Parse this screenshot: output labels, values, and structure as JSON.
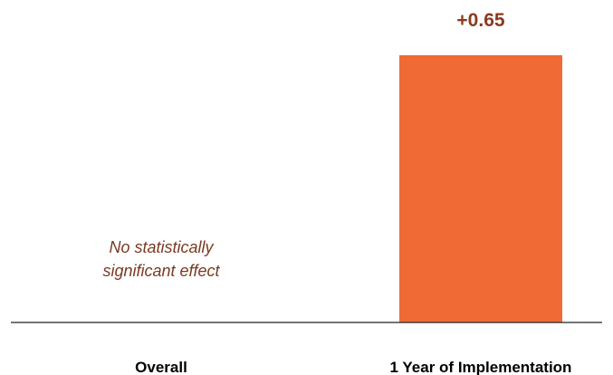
{
  "chart_data": {
    "type": "bar",
    "categories": [
      "Overall",
      "1 Year of Implementation"
    ],
    "values": [
      0,
      0.65
    ],
    "data_labels": [
      "",
      "+0.65"
    ],
    "annotations": [
      {
        "category": "Overall",
        "lines": [
          "No statistically",
          "significant effect"
        ]
      }
    ],
    "title": "",
    "xlabel": "",
    "ylabel": "",
    "ylim": [
      0,
      0.65
    ],
    "grid": false,
    "colors": {
      "bar": "#F06A35",
      "value_label": "#8A3A1E",
      "annotation": "#7A3A22",
      "baseline": "#222222"
    }
  }
}
